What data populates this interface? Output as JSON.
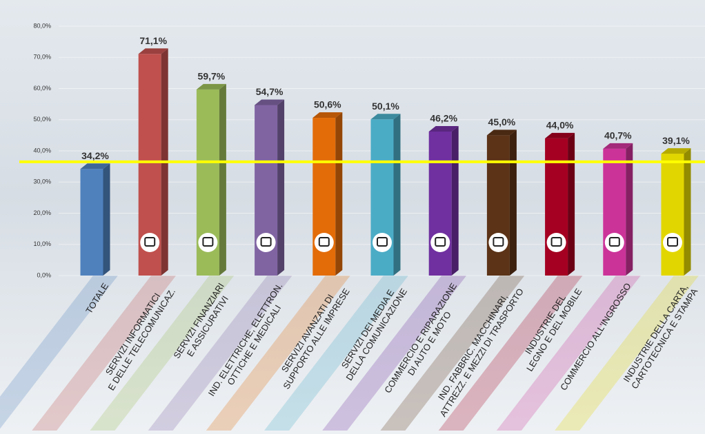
{
  "chart_data": {
    "type": "bar3d",
    "categories": [
      "TOTALE",
      "SERVIZI INFORMATICI\nE DELLE TELECOMUNICAZ.",
      "SERVIZI FINANZIARI\nE ASSICURATIVI",
      "IND. ELETTRICHE, ELETTRON.\nOTTICHE E MEDICALI",
      "SERVIZI AVANZATI DI\nSUPPORTO ALLE IMPRESE",
      "SERVIZI DEI MEDIA E\nDELLA COMUNICAZIONE",
      "COMMERCIO E RIPARAZIONE\nDI AUTO E MOTO",
      "IND. FABBRIC. MACCHINARI,\nATTREZZ. E MEZZI DI TRASPORTO",
      "INDUSTRIE DEL\nLEGNO E DEL MOBILE",
      "COMMERCIO ALL'INGROSSO",
      "INDUSTRIE DELLA CARTA,\nCARTOTECNICA E STAMPA"
    ],
    "values": [
      34.2,
      71.1,
      59.7,
      54.7,
      50.6,
      50.1,
      46.2,
      45.0,
      44.0,
      40.7,
      39.1
    ],
    "value_labels": [
      "34,2%",
      "71,1%",
      "59,7%",
      "54,7%",
      "50,6%",
      "50,1%",
      "46,2%",
      "45,0%",
      "44,0%",
      "40,7%",
      "39,1%"
    ],
    "colors": [
      "#4f81bd",
      "#c0504d",
      "#9bbb59",
      "#8064a2",
      "#e36c09",
      "#4bacc6",
      "#7030a0",
      "#5c3317",
      "#a50021",
      "#cc3399",
      "#e2d600"
    ],
    "ylim": [
      0,
      80
    ],
    "yticks": [
      {
        "value": 0,
        "label": "0,0%"
      },
      {
        "value": 10,
        "label": "10,0%"
      },
      {
        "value": 20,
        "label": "20,0%"
      },
      {
        "value": 30,
        "label": "30,0%"
      },
      {
        "value": 40,
        "label": "40,0%"
      },
      {
        "value": 50,
        "label": "50,0%"
      },
      {
        "value": 60,
        "label": "60,0%"
      },
      {
        "value": 70,
        "label": "70,0%"
      },
      {
        "value": 80,
        "label": "80,0%"
      }
    ],
    "reference_line": {
      "value": 36.5,
      "color": "#ffff00"
    }
  }
}
